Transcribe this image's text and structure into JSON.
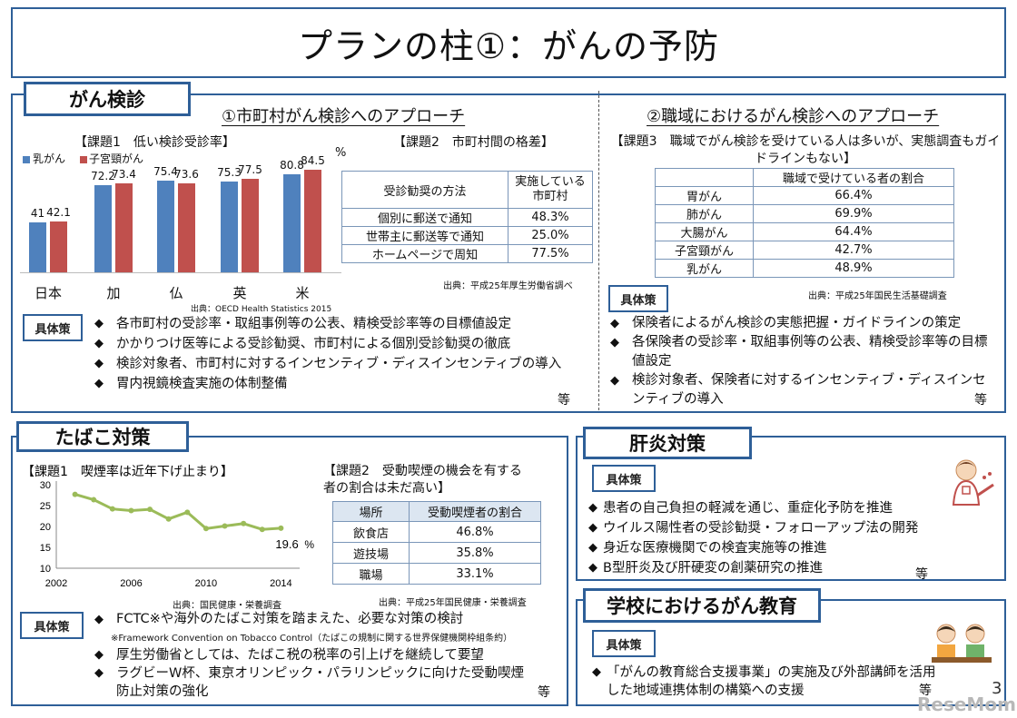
{
  "title": "プランの柱①：がんの予防",
  "screening": {
    "label": "がん検診",
    "municipal_heading": "①市町村がん検診へのアプローチ",
    "workplace_heading": "②職域におけるがん検診へのアプローチ",
    "issue1": "【課題1　低い検診受診率】",
    "legend_breast": "乳がん",
    "legend_cervical": "子宮頸がん",
    "unit": "%",
    "source1": "出典：OECD Health Statistics 2015",
    "issue2": "【課題2　市町村間の格差】",
    "table2_headers": [
      "受診勧奨の方法",
      "実施している\n市町村"
    ],
    "table2_rows": [
      [
        "個別に郵送で通知",
        "48.3%"
      ],
      [
        "世帯主に郵送等で通知",
        "25.0%"
      ],
      [
        "ホームページで周知",
        "77.5%"
      ]
    ],
    "source2": "出典：平成25年厚生労働省調べ",
    "issue3": "【課題3　職域でがん検診を受けている人は多いが、実態調査もガイドラインもない】",
    "table3_header": "職域で受けている者の割合",
    "table3_rows": [
      [
        "胃がん",
        "66.4%"
      ],
      [
        "肺がん",
        "69.9%"
      ],
      [
        "大腸がん",
        "64.4%"
      ],
      [
        "子宮頸がん",
        "42.7%"
      ],
      [
        "乳がん",
        "48.9%"
      ]
    ],
    "source3": "出典：平成25年国民生活基礎調査",
    "measures_label": "具体策",
    "measures_left": [
      "各市町村の受診率・取組事例等の公表、精検受診率等の目標値設定",
      "かかりつけ医等による受診勧奨、市町村による個別受診勧奨の徹底",
      "検診対象者、市町村に対するインセンティブ・ディスインセンティブの導入",
      "胃内視鏡検査実施の体制整備"
    ],
    "measures_right": [
      "保険者によるがん検診の実態把握・ガイドラインの策定",
      "各保険者の受診率・取組事例等の公表、精検受診率等の目標値設定",
      "検診対象者、保険者に対するインセンティブ・ディスインセンティブの導入"
    ],
    "etc": "等"
  },
  "chart_data": [
    {
      "type": "bar",
      "title": "【課題1　低い検診受診率】",
      "categories": [
        "日本",
        "加",
        "仏",
        "英",
        "米"
      ],
      "series": [
        {
          "name": "乳がん",
          "values": [
            41,
            72.2,
            75.4,
            75.3,
            80.8
          ]
        },
        {
          "name": "子宮頸がん",
          "values": [
            42.1,
            73.4,
            73.6,
            77.5,
            84.5
          ]
        }
      ],
      "ylabel": "%",
      "ylim": [
        0,
        90
      ]
    },
    {
      "type": "line",
      "title": "【課題1　喫煙率は近年下げ止まり】",
      "x": [
        2003,
        2004,
        2005,
        2006,
        2007,
        2008,
        2009,
        2010,
        2011,
        2012,
        2013,
        2014
      ],
      "values": [
        27.7,
        26.4,
        24.2,
        23.8,
        24.1,
        21.8,
        23.4,
        19.5,
        20.1,
        20.7,
        19.3,
        19.6
      ],
      "xticks": [
        "2002",
        "2006",
        "2010",
        "2014"
      ],
      "yticks": [
        "10",
        "15",
        "20",
        "25",
        "30"
      ],
      "ylim": [
        10,
        30
      ],
      "xlim": [
        2002,
        2015
      ],
      "end_label": "19.6",
      "unit": "%"
    }
  ],
  "tobacco": {
    "label": "たばこ対策",
    "source_chart": "出典：国民健康・栄養調査",
    "issue2": "【課題2　受動喫煙の機会を有する者の割合は未だ高い】",
    "table_headers": [
      "場所",
      "受動喫煙者の割合"
    ],
    "table_rows": [
      [
        "飲食店",
        "46.8%"
      ],
      [
        "遊技場",
        "35.8%"
      ],
      [
        "職場",
        "33.1%"
      ]
    ],
    "source_table": "出典：平成25年国民健康・栄養調査",
    "measures_label": "具体策",
    "measure1": "FCTC※や海外のたばこ対策を踏まえた、必要な対策の検討",
    "measure1_note": "※Framework Convention on Tobacco Control（たばこの規制に関する世界保健機関枠組条約）",
    "measure2": "厚生労働省としては、たばこ税の税率の引上げを継続して要望",
    "measure3": "ラグビーW杯、東京オリンピック・パラリンピックに向けた受動喫煙防止対策の強化",
    "etc": "等"
  },
  "hepatitis": {
    "label": "肝炎対策",
    "measures_label": "具体策",
    "measures": [
      "患者の自己負担の軽減を通じ、重症化予防を推進",
      "ウイルス陽性者の受診勧奨・フォローアップ法の開発",
      "身近な医療機関での検査実施等の推進",
      "B型肝炎及び肝硬変の創薬研究の推進"
    ],
    "etc": "等"
  },
  "education": {
    "label": "学校におけるがん教育",
    "measures_label": "具体策",
    "measure": "「がんの教育総合支援事業」の実施及び外部講師を活用した地域連携体制の構築への支援",
    "etc": "等"
  },
  "page_number": "3",
  "watermark": "ReseMom"
}
